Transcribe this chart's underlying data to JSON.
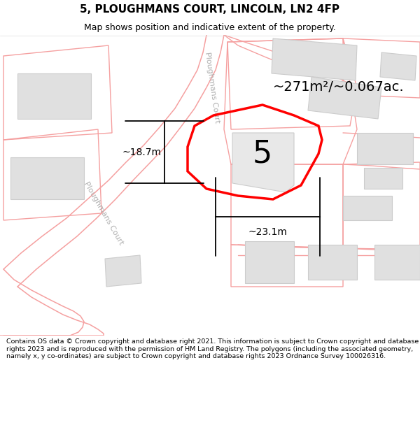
{
  "title": "5, PLOUGHMANS COURT, LINCOLN, LN2 4FP",
  "subtitle": "Map shows position and indicative extent of the property.",
  "copyright_text": "Contains OS data © Crown copyright and database right 2021. This information is subject to Crown copyright and database rights 2023 and is reproduced with the permission of HM Land Registry. The polygons (including the associated geometry, namely x, y co-ordinates) are subject to Crown copyright and database rights 2023 Ordnance Survey 100026316.",
  "area_label": "~271m²/~0.067ac.",
  "number_label": "5",
  "dim_vertical": "~18.7m",
  "dim_horizontal": "~23.1m",
  "road_label1": "Ploughmans Court",
  "road_label2": "Ploughmans Court",
  "highlight_color": "#ff0000",
  "road_outline_color": "#f5a0a0",
  "building_fill": "#e0e0e0",
  "building_edge": "#cccccc"
}
